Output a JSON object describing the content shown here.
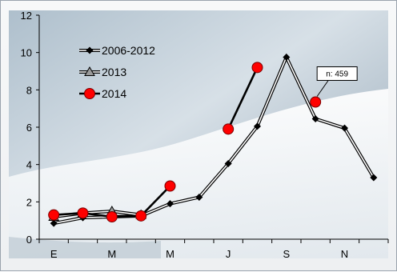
{
  "chart_data": {
    "type": "line",
    "title": "",
    "xlabel": "",
    "ylabel": "",
    "ylim": [
      0,
      12
    ],
    "yticks": [
      "0",
      "2",
      "4",
      "6",
      "8",
      "10",
      "12"
    ],
    "x_periods": 12,
    "categories": [
      "E",
      "",
      "M",
      "",
      "M",
      "",
      "J",
      "",
      "S",
      "",
      "N",
      ""
    ],
    "series": [
      {
        "name": "2006-2012",
        "color": "#000000",
        "marker": "diamond",
        "line_style": "double",
        "values": [
          0.85,
          1.15,
          1.2,
          1.25,
          1.9,
          2.25,
          4.05,
          6.05,
          9.75,
          6.45,
          5.95,
          3.3
        ]
      },
      {
        "name": "2013",
        "color": "#000000",
        "marker": "triangle",
        "line_style": "double",
        "values": [
          1.2,
          1.4,
          1.5,
          1.3,
          null,
          null,
          null,
          null,
          null,
          null,
          null,
          null
        ]
      },
      {
        "name": "2014",
        "color": "#ff0000",
        "marker": "circle",
        "line_style": "thick",
        "values": [
          1.3,
          1.4,
          1.2,
          1.25,
          2.85,
          null,
          5.9,
          9.2,
          null,
          7.35,
          null,
          null
        ]
      }
    ],
    "annotations": [
      {
        "text": "n: 459",
        "series": "2014",
        "point_index": 9
      }
    ],
    "legend_position": "top-left",
    "grid": false
  }
}
